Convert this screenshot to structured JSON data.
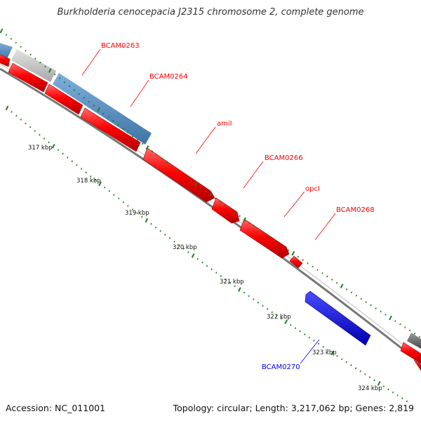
{
  "title": "Burkholderia cenocepacia J2315 chromosome 2, complete genome",
  "footer": {
    "accession": "Accession: NC_011001",
    "summary": "Topology: circular; Length: 3,217,062 bp; Genes: 2,819"
  },
  "colors": {
    "forward_gene": "#ff0000",
    "reverse_gene": "#0000ff",
    "feature_steelblue": "#4682b4",
    "feature_gray": "#bbbbbb",
    "backbone": "#777777",
    "tick": "#1e7d1e",
    "label_red": "#ff0000",
    "label_blue": "#0000ff"
  },
  "scale_labels": [
    "317 kbp",
    "318 kbp",
    "319 kbp",
    "320 kbp",
    "321 kbp",
    "322 kbp",
    "323 kbp",
    "324 kbp"
  ],
  "gene_labels": [
    {
      "text": "BCAM0263",
      "strand": "forward"
    },
    {
      "text": "BCAM0264",
      "strand": "forward"
    },
    {
      "text": "amiI",
      "strand": "forward"
    },
    {
      "text": "BCAM0266",
      "strand": "forward"
    },
    {
      "text": "opcI",
      "strand": "forward"
    },
    {
      "text": "BCAM0268",
      "strand": "forward"
    },
    {
      "text": "BCAM0270",
      "strand": "reverse"
    }
  ]
}
